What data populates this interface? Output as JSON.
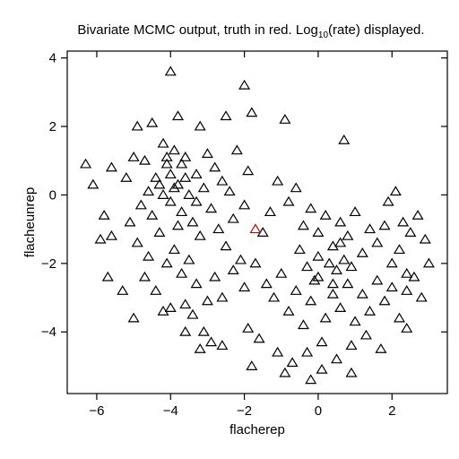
{
  "chart_data": {
    "type": "scatter",
    "title": "Bivariate MCMC output, truth in red. Log",
    "title_subscript": "10",
    "title_suffix": "(rate) displayed.",
    "xlabel": "flacherep",
    "ylabel": "flacheunrep",
    "xlim": [
      -6.8,
      3.5
    ],
    "ylim": [
      -5.8,
      4.2
    ],
    "x_ticks": [
      -6,
      -4,
      -2,
      0,
      2
    ],
    "x_tick_labels": [
      "−6",
      "−4",
      "−2",
      "0",
      "2"
    ],
    "y_ticks": [
      -4,
      -2,
      0,
      2,
      4
    ],
    "y_tick_labels": [
      "−4",
      "−2",
      "0",
      "2",
      "4"
    ],
    "grid": false,
    "marker": "open-triangle",
    "colors": {
      "points": "#000000",
      "truth": "#cc0000"
    },
    "series": [
      {
        "role": "samples",
        "points": [
          [
            -4.0,
            3.6
          ],
          [
            -2.0,
            3.2
          ],
          [
            -1.8,
            2.4
          ],
          [
            -0.9,
            2.2
          ],
          [
            0.7,
            1.6
          ],
          [
            -4.9,
            2.0
          ],
          [
            -4.5,
            2.1
          ],
          [
            -3.8,
            2.3
          ],
          [
            -3.2,
            2.0
          ],
          [
            -2.5,
            2.3
          ],
          [
            -6.3,
            0.9
          ],
          [
            -6.1,
            0.3
          ],
          [
            -5.8,
            -0.6
          ],
          [
            -5.9,
            -1.3
          ],
          [
            -5.6,
            -1.2
          ],
          [
            -5.6,
            0.8
          ],
          [
            -5.2,
            0.5
          ],
          [
            -5.0,
            1.1
          ],
          [
            -4.7,
            1.0
          ],
          [
            -4.6,
            0.1
          ],
          [
            -4.4,
            0.5
          ],
          [
            -4.2,
            1.5
          ],
          [
            -4.1,
            0.9
          ],
          [
            -4.0,
            -0.2
          ],
          [
            -3.9,
            1.3
          ],
          [
            -3.8,
            0.3
          ],
          [
            -3.7,
            -0.5
          ],
          [
            -3.6,
            1.1
          ],
          [
            -3.5,
            0.0
          ],
          [
            -3.4,
            -0.8
          ],
          [
            -3.3,
            0.6
          ],
          [
            -3.2,
            -1.2
          ],
          [
            -3.1,
            0.2
          ],
          [
            -3.0,
            1.2
          ],
          [
            -2.9,
            -0.4
          ],
          [
            -2.8,
            0.8
          ],
          [
            -2.7,
            -1.0
          ],
          [
            -2.6,
            0.4
          ],
          [
            -2.5,
            -1.5
          ],
          [
            -2.4,
            0.1
          ],
          [
            -2.3,
            -0.7
          ],
          [
            -2.2,
            1.3
          ],
          [
            -2.1,
            -1.9
          ],
          [
            -2.0,
            -0.3
          ],
          [
            -1.9,
            0.7
          ],
          [
            -4.8,
            -0.3
          ],
          [
            -5.1,
            -0.8
          ],
          [
            -4.9,
            -1.4
          ],
          [
            -4.6,
            -1.8
          ],
          [
            -4.3,
            -1.1
          ],
          [
            -4.1,
            -2.0
          ],
          [
            -3.9,
            -1.6
          ],
          [
            -3.7,
            -2.3
          ],
          [
            -3.5,
            -1.9
          ],
          [
            -3.3,
            -2.6
          ],
          [
            -3.6,
            -3.2
          ],
          [
            -3.4,
            -3.5
          ],
          [
            -3.0,
            -3.1
          ],
          [
            -2.8,
            -2.4
          ],
          [
            -2.6,
            -3.0
          ],
          [
            -4.4,
            -2.8
          ],
          [
            -4.7,
            -2.4
          ],
          [
            -5.3,
            -2.8
          ],
          [
            -4.0,
            -3.3
          ],
          [
            -3.1,
            -4.0
          ],
          [
            -2.9,
            -4.3
          ],
          [
            -3.2,
            -4.5
          ],
          [
            -2.3,
            -2.2
          ],
          [
            -2.0,
            -2.7
          ],
          [
            -1.7,
            -2.0
          ],
          [
            -1.5,
            -1.1
          ],
          [
            -1.3,
            -0.5
          ],
          [
            -1.1,
            0.4
          ],
          [
            -0.8,
            -0.2
          ],
          [
            -0.6,
            0.2
          ],
          [
            -0.4,
            -0.9
          ],
          [
            -0.2,
            -0.4
          ],
          [
            0.0,
            -1.1
          ],
          [
            0.2,
            -0.6
          ],
          [
            0.4,
            -1.5
          ],
          [
            0.6,
            -0.8
          ],
          [
            0.8,
            -1.2
          ],
          [
            1.0,
            -0.5
          ],
          [
            1.2,
            -1.7
          ],
          [
            1.4,
            -1.0
          ],
          [
            1.6,
            -1.4
          ],
          [
            1.8,
            -0.9
          ],
          [
            2.0,
            -2.0
          ],
          [
            2.2,
            -1.6
          ],
          [
            2.4,
            -2.3
          ],
          [
            -1.4,
            -2.6
          ],
          [
            -1.2,
            -3.0
          ],
          [
            -1.0,
            -2.3
          ],
          [
            -0.8,
            -3.4
          ],
          [
            -0.6,
            -2.8
          ],
          [
            -0.4,
            -3.8
          ],
          [
            -0.2,
            -3.1
          ],
          [
            0.0,
            -2.4
          ],
          [
            0.2,
            -3.6
          ],
          [
            0.4,
            -2.9
          ],
          [
            0.6,
            -3.3
          ],
          [
            0.8,
            -2.6
          ],
          [
            1.0,
            -3.7
          ],
          [
            1.2,
            -2.9
          ],
          [
            1.4,
            -3.4
          ],
          [
            1.6,
            -2.5
          ],
          [
            1.8,
            -3.1
          ],
          [
            2.0,
            -2.7
          ],
          [
            2.2,
            -3.6
          ],
          [
            2.4,
            -2.8
          ],
          [
            -1.9,
            -3.9
          ],
          [
            -1.6,
            -4.2
          ],
          [
            -1.1,
            -4.6
          ],
          [
            -0.7,
            -4.9
          ],
          [
            -0.3,
            -4.6
          ],
          [
            0.1,
            -4.3
          ],
          [
            0.5,
            -4.8
          ],
          [
            0.9,
            -4.4
          ],
          [
            1.3,
            -4.1
          ],
          [
            1.7,
            -4.5
          ],
          [
            -1.8,
            -5.0
          ],
          [
            -0.2,
            -5.4
          ],
          [
            0.9,
            -5.2
          ],
          [
            0.1,
            -5.1
          ],
          [
            -0.9,
            -5.2
          ],
          [
            2.7,
            -0.6
          ],
          [
            2.9,
            -1.3
          ],
          [
            3.0,
            -2.0
          ],
          [
            2.6,
            -2.4
          ],
          [
            2.8,
            -3.0
          ],
          [
            2.1,
            0.1
          ],
          [
            1.9,
            -0.2
          ],
          [
            2.3,
            -0.8
          ],
          [
            2.5,
            -1.1
          ],
          [
            2.4,
            -3.9
          ],
          [
            -5.7,
            -2.4
          ],
          [
            -5.0,
            -3.6
          ],
          [
            -4.2,
            -3.4
          ],
          [
            -3.6,
            -4.0
          ],
          [
            -2.6,
            -4.4
          ],
          [
            -4.3,
            0.3
          ],
          [
            -4.2,
            0.0
          ],
          [
            -4.0,
            0.6
          ],
          [
            -3.8,
            -0.9
          ],
          [
            -3.6,
            0.5
          ],
          [
            -4.5,
            -0.6
          ],
          [
            -4.1,
            1.1
          ],
          [
            -3.9,
            0.2
          ],
          [
            -3.7,
            0.9
          ],
          [
            -3.3,
            -0.2
          ],
          [
            0.3,
            -2.0
          ],
          [
            0.0,
            -1.8
          ],
          [
            0.5,
            -2.2
          ],
          [
            -0.3,
            -2.1
          ],
          [
            0.7,
            -1.9
          ],
          [
            -0.1,
            -2.5
          ],
          [
            0.4,
            -2.6
          ],
          [
            0.9,
            -2.1
          ],
          [
            -0.5,
            -1.6
          ],
          [
            0.6,
            -1.4
          ]
        ]
      },
      {
        "role": "truth",
        "points": [
          [
            -1.7,
            -1.0
          ]
        ]
      }
    ]
  }
}
